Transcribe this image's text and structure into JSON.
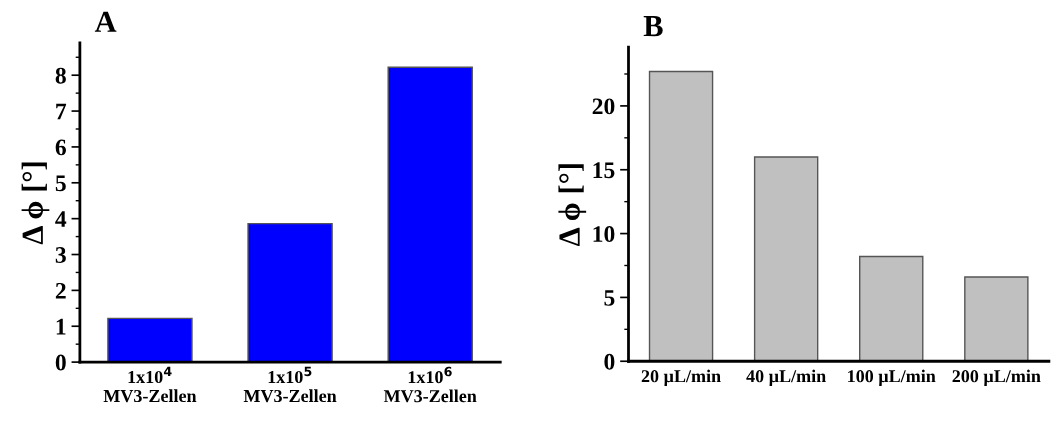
{
  "chart_data": [
    {
      "type": "bar",
      "title": "A",
      "ylabel": "Δ ϕ [°]",
      "categories": [
        "1x10$^{4}$\nMV3-Zellen",
        "1x10$^{5}$\nMV3-Zellen",
        "1x10$^{6}$\nMV3-Zellen"
      ],
      "values": [
        1.22,
        3.86,
        8.22
      ],
      "color": "#0000ff",
      "ylim": [
        0,
        8.9
      ],
      "yticks": [
        0,
        {
          "value": 0.5,
          "label": null
        },
        1,
        {
          "value": 1.5,
          "label": null
        },
        2,
        {
          "value": 2.5,
          "label": null
        },
        3,
        {
          "value": 3.5,
          "label": null
        },
        4,
        {
          "value": 4.5,
          "label": null
        },
        5,
        {
          "value": 5.5,
          "label": null
        },
        6,
        {
          "value": 6.5,
          "label": null
        },
        7,
        {
          "value": 7.5,
          "label": null
        },
        8,
        {
          "value": 8.5,
          "label": null
        }
      ],
      "grid": false,
      "legend": false
    },
    {
      "type": "bar",
      "title": "B",
      "ylabel": "Δ ϕ [°]",
      "categories": [
        "20 µL/min",
        "40 µL/min",
        "100 µL/min",
        "200 µL/min"
      ],
      "values": [
        22.7,
        16.0,
        8.2,
        6.6
      ],
      "color": "#c0c0c0",
      "ylim": [
        0,
        24.6
      ],
      "yticks": [
        0,
        {
          "value": 2.5,
          "label": null
        },
        5,
        {
          "value": 7.5,
          "label": null
        },
        10,
        {
          "value": 12.5,
          "label": null
        },
        15,
        {
          "value": 17.5,
          "label": null
        },
        20,
        {
          "value": 22.5,
          "label": null
        }
      ],
      "grid": false,
      "legend": false
    }
  ]
}
